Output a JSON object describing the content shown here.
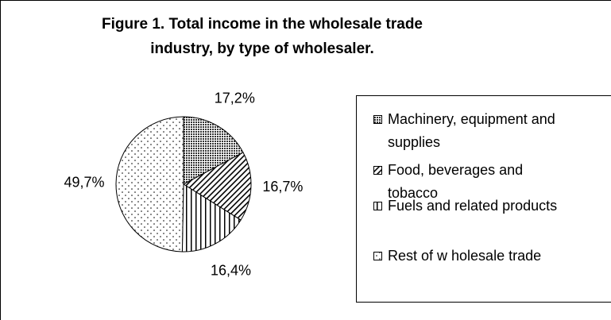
{
  "chart_data": {
    "type": "pie",
    "title": "Figure 1. Total income in the wholesale trade industry, by type of wholesaler.",
    "categories": [
      "Machinery, equipment and supplies",
      "Food, beverages and tobacco",
      "Fuels and related products",
      "Rest of w holesale trade"
    ],
    "values": [
      17.2,
      16.7,
      16.4,
      49.7
    ],
    "value_labels": [
      "17,2%",
      "16,7%",
      "16,4%",
      "49,7%"
    ]
  }
}
